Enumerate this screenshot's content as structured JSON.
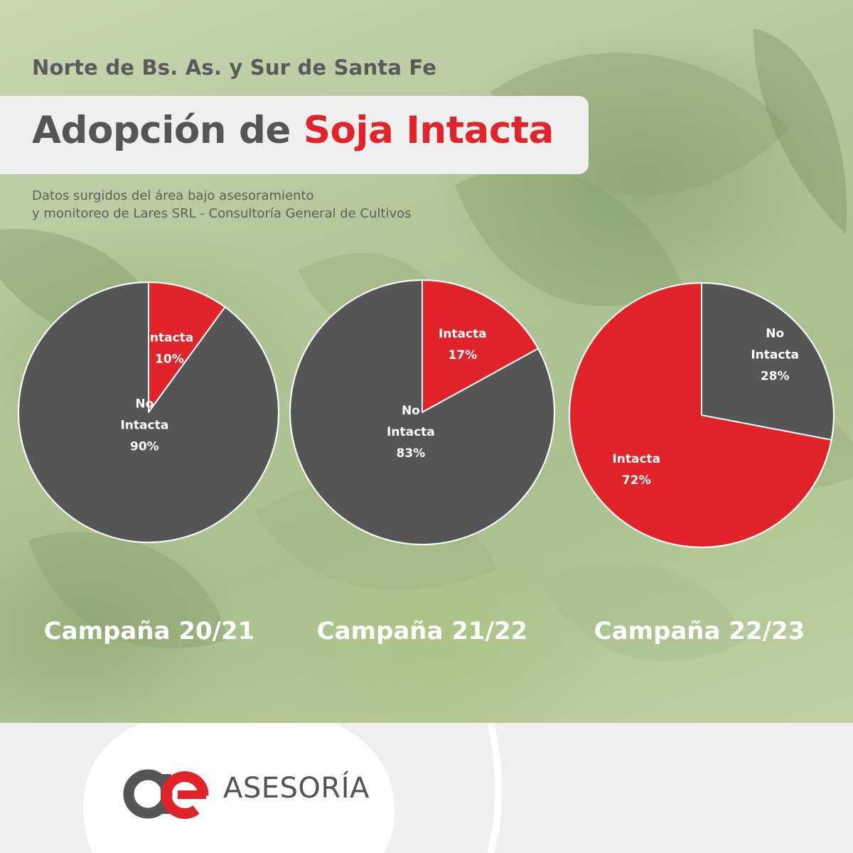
{
  "header": {
    "subtitle": "Norte de Bs. As. y Sur de Santa Fe",
    "title_main": "Adopción de ",
    "title_accent": "Soja Intacta",
    "note_line1": "Datos surgidos del área bajo asesoramiento",
    "note_line2": "y monitoreo de Lares SRL - Consultoría General de Cultivos"
  },
  "colors": {
    "intacta": "#e0242a",
    "no_intacta": "#555555",
    "title_gray": "#555555",
    "panel": "#efefef"
  },
  "chart_data": [
    {
      "type": "pie",
      "title": "Campaña 20/21",
      "slices": [
        {
          "label": "Intacta",
          "value": 10,
          "display": "10%"
        },
        {
          "label": "No Intacta",
          "value": 90,
          "display": "90%"
        }
      ]
    },
    {
      "type": "pie",
      "title": "Campaña 21/22",
      "slices": [
        {
          "label": "Intacta",
          "value": 17,
          "display": "17%"
        },
        {
          "label": "No Intacta",
          "value": 83,
          "display": "83%"
        }
      ]
    },
    {
      "type": "pie",
      "title": "Campaña 22/23",
      "slices": [
        {
          "label": "No Intacta",
          "value": 28,
          "display": "28%"
        },
        {
          "label": "Intacta",
          "value": 72,
          "display": "72%"
        }
      ]
    }
  ],
  "footer": {
    "brand": "ASESORÍA",
    "logo_icon": "ae-logo-icon"
  }
}
